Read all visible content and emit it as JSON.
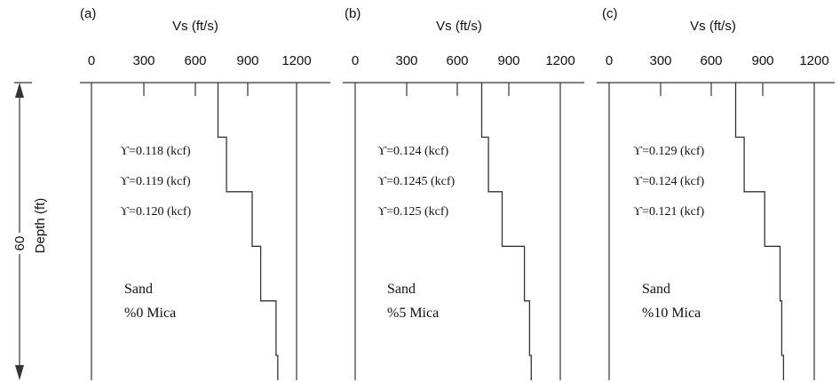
{
  "figure": {
    "depth_label": "Depth (ft)",
    "depth_value": "60",
    "colors": {
      "line": "#333333",
      "text": "#111111",
      "background": "#ffffff"
    }
  },
  "panels": [
    {
      "id": "a",
      "panel_label": "(a)",
      "axis_title": "Vs (ft/s)",
      "ticks": [
        "0",
        "300",
        "600",
        "900",
        "1200"
      ],
      "unit_weights": [
        "ϒ=0.118 (kcf)",
        "ϒ=0.119 (kcf)",
        "ϒ=0.120 (kcf)"
      ],
      "soil_line1": "Sand",
      "soil_line2": "%0 Mica"
    },
    {
      "id": "b",
      "panel_label": "(b)",
      "axis_title": "Vs (ft/s)",
      "ticks": [
        "0",
        "300",
        "600",
        "900",
        "1200"
      ],
      "unit_weights": [
        "ϒ=0.124 (kcf)",
        "ϒ=0.1245 (kcf)",
        "ϒ=0.125 (kcf)"
      ],
      "soil_line1": "Sand",
      "soil_line2": "%5 Mica"
    },
    {
      "id": "c",
      "panel_label": "(c)",
      "axis_title": "Vs (ft/s)",
      "ticks": [
        "0",
        "300",
        "600",
        "900",
        "1200"
      ],
      "unit_weights": [
        "ϒ=0.129 (kcf)",
        "ϒ=0.124 (kcf)",
        "ϒ=0.121 (kcf)"
      ],
      "soil_line1": "Sand",
      "soil_line2": "%10 Mica"
    }
  ],
  "chart_data": {
    "type": "line",
    "xlabel": "Vs (ft/s)",
    "ylabel": "Depth (ft)",
    "xlim": [
      0,
      1200
    ],
    "ylim": [
      0,
      60
    ],
    "series": [
      {
        "name": "(a)",
        "points": [
          [
            740,
            0
          ],
          [
            740,
            11
          ],
          [
            790,
            11
          ],
          [
            790,
            22
          ],
          [
            940,
            22
          ],
          [
            940,
            33
          ],
          [
            990,
            33
          ],
          [
            990,
            44
          ],
          [
            1080,
            44
          ],
          [
            1080,
            55
          ],
          [
            1090,
            55
          ],
          [
            1090,
            60
          ]
        ]
      },
      {
        "name": "(b)",
        "points": [
          [
            740,
            0
          ],
          [
            740,
            11
          ],
          [
            780,
            11
          ],
          [
            780,
            22
          ],
          [
            860,
            22
          ],
          [
            860,
            33
          ],
          [
            990,
            33
          ],
          [
            990,
            44
          ],
          [
            1020,
            44
          ],
          [
            1020,
            55
          ],
          [
            1030,
            55
          ],
          [
            1030,
            60
          ]
        ]
      },
      {
        "name": "(c)",
        "points": [
          [
            740,
            0
          ],
          [
            740,
            11
          ],
          [
            790,
            11
          ],
          [
            790,
            22
          ],
          [
            910,
            22
          ],
          [
            910,
            33
          ],
          [
            1000,
            33
          ],
          [
            1000,
            44
          ],
          [
            1010,
            44
          ],
          [
            1010,
            55
          ],
          [
            1020,
            55
          ],
          [
            1020,
            60
          ]
        ]
      }
    ]
  }
}
